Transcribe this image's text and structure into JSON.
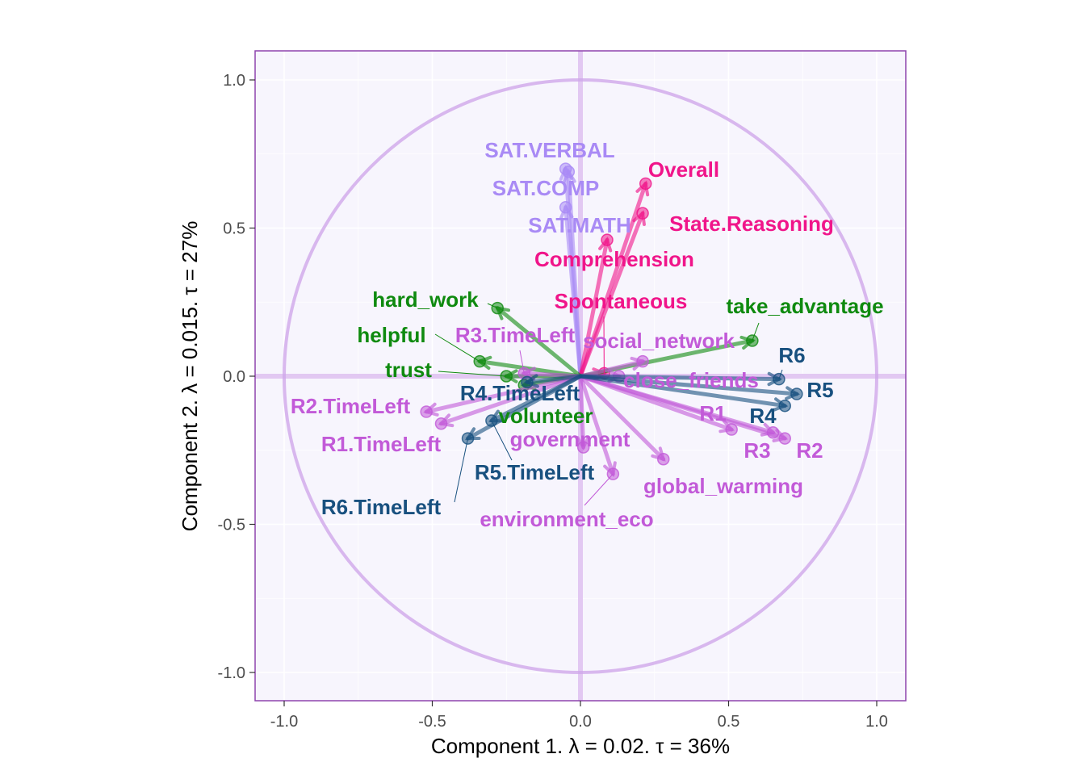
{
  "colors": {
    "panel_bg": "#f7f5fd",
    "panel_border": "#8e44ad",
    "circle": "#cfa8ea",
    "zero_lines": "#e2c8f2",
    "grid": "#ffffff",
    "group_sat": "#a98af5",
    "group_outcome": "#f0158a",
    "group_social": "#c25ad8",
    "group_values": "#0f8a0f",
    "group_rounds": "#18507f"
  },
  "chart_data": {
    "type": "scatter",
    "subtype": "correlation-circle biplot with arrows from origin",
    "xlabel": "Component 1.   λ = 0.02.  τ = 36%",
    "ylabel": "Component 2.   λ = 0.015.  τ = 27%",
    "xlim": [
      -1.1,
      1.1
    ],
    "ylim": [
      -1.1,
      1.1
    ],
    "x_ticks": [
      "-1.0",
      "-0.5",
      "0.0",
      "0.5",
      "1.0"
    ],
    "y_ticks": [
      "1.0",
      "0.5",
      "0.0",
      "-0.5",
      "-1.0"
    ],
    "x_tick_values": [
      -1.0,
      -0.5,
      0.0,
      0.5,
      1.0
    ],
    "y_tick_values": [
      1.0,
      0.5,
      0.0,
      -0.5,
      -1.0
    ],
    "circle_radius": 1.0,
    "grid": true,
    "points": [
      {
        "label": "SAT.VERBAL",
        "x": -0.05,
        "y": 0.7,
        "group": "sat"
      },
      {
        "label": "SAT.COMP",
        "x": -0.04,
        "y": 0.69,
        "group": "sat"
      },
      {
        "label": "SAT.MATH",
        "x": -0.05,
        "y": 0.57,
        "group": "sat"
      },
      {
        "label": "Overall",
        "x": 0.22,
        "y": 0.65,
        "group": "outcome"
      },
      {
        "label": "State.Reasoning",
        "x": 0.21,
        "y": 0.55,
        "group": "outcome"
      },
      {
        "label": "Comprehension",
        "x": 0.09,
        "y": 0.46,
        "group": "outcome"
      },
      {
        "label": "Spontaneous",
        "x": 0.08,
        "y": 0.01,
        "group": "outcome"
      },
      {
        "label": "hard_work",
        "x": -0.28,
        "y": 0.23,
        "group": "values"
      },
      {
        "label": "helpful",
        "x": -0.34,
        "y": 0.05,
        "group": "values"
      },
      {
        "label": "trust",
        "x": -0.25,
        "y": 0.0,
        "group": "values"
      },
      {
        "label": "volunteer",
        "x": -0.19,
        "y": -0.03,
        "group": "values"
      },
      {
        "label": "take_advantage",
        "x": 0.58,
        "y": 0.12,
        "group": "values"
      },
      {
        "label": "social_network",
        "x": 0.21,
        "y": 0.05,
        "group": "social"
      },
      {
        "label": "close_friends",
        "x": 0.13,
        "y": 0.0,
        "group": "social"
      },
      {
        "label": "R3.TimeLeft",
        "x": -0.19,
        "y": 0.01,
        "group": "social"
      },
      {
        "label": "R2.TimeLeft",
        "x": -0.52,
        "y": -0.12,
        "group": "social"
      },
      {
        "label": "R1.TimeLeft",
        "x": -0.47,
        "y": -0.16,
        "group": "social"
      },
      {
        "label": "government",
        "x": 0.01,
        "y": -0.24,
        "group": "social"
      },
      {
        "label": "environment_eco",
        "x": 0.11,
        "y": -0.33,
        "group": "social"
      },
      {
        "label": "global_warming",
        "x": 0.28,
        "y": -0.28,
        "group": "social"
      },
      {
        "label": "R1",
        "x": 0.51,
        "y": -0.18,
        "group": "social"
      },
      {
        "label": "R3",
        "x": 0.65,
        "y": -0.19,
        "group": "social"
      },
      {
        "label": "R2",
        "x": 0.69,
        "y": -0.21,
        "group": "social"
      },
      {
        "label": "R6",
        "x": 0.67,
        "y": -0.01,
        "group": "rounds"
      },
      {
        "label": "R5",
        "x": 0.73,
        "y": -0.06,
        "group": "rounds"
      },
      {
        "label": "R4",
        "x": 0.69,
        "y": -0.1,
        "group": "rounds"
      },
      {
        "label": "R4.TimeLeft",
        "x": -0.18,
        "y": -0.02,
        "group": "rounds"
      },
      {
        "label": "R5.TimeLeft",
        "x": -0.3,
        "y": -0.15,
        "group": "rounds"
      },
      {
        "label": "R6.TimeLeft",
        "x": -0.38,
        "y": -0.21,
        "group": "rounds"
      }
    ]
  }
}
